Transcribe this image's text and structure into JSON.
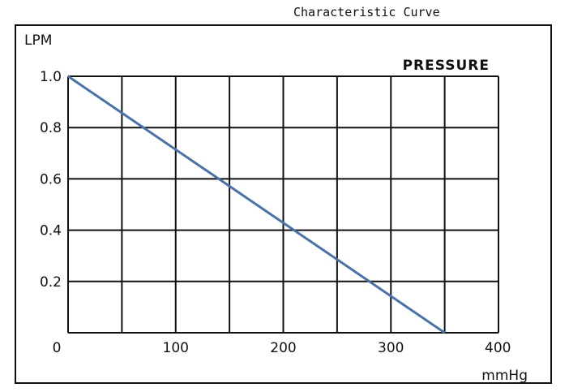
{
  "chart_data": {
    "type": "line",
    "title": "Characteristic Curve",
    "annotation": "PRESSURE",
    "ylabel": "LPM",
    "xlabel": "mmHg",
    "xlim": [
      0,
      400
    ],
    "ylim": [
      0,
      1.0
    ],
    "x_ticks": [
      0,
      100,
      200,
      300,
      400
    ],
    "x_tick_labels": [
      "0",
      "100",
      "200",
      "300",
      "400"
    ],
    "x_gridlines": [
      0,
      50,
      100,
      150,
      200,
      250,
      300,
      350,
      400
    ],
    "y_ticks": [
      0.2,
      0.4,
      0.6,
      0.8,
      1.0
    ],
    "y_tick_labels": [
      "0.2",
      "0.4",
      "0.6",
      "0.8",
      "1.0"
    ],
    "grid": true,
    "line_color": "#4a72a8",
    "series": [
      {
        "x": [
          0,
          350
        ],
        "y": [
          1.0,
          0
        ]
      }
    ]
  }
}
